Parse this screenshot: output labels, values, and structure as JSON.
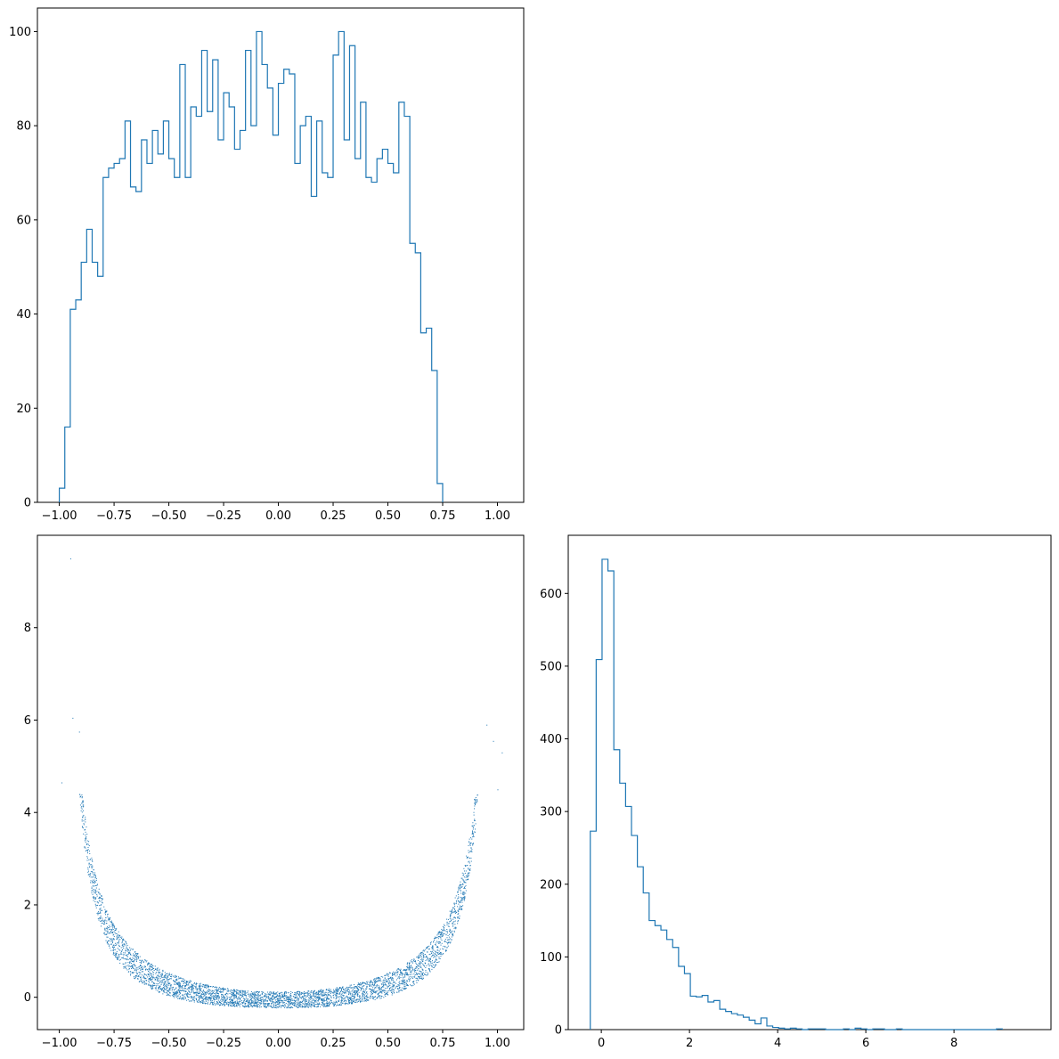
{
  "colors": {
    "series": "#1f77b4",
    "axes": "#000000",
    "background": "#ffffff"
  },
  "chart_data": [
    {
      "id": "hist-x",
      "type": "bar",
      "style": "step-histogram",
      "title": "",
      "xlabel": "",
      "ylabel": "",
      "xlim": [
        -1.1,
        1.12
      ],
      "ylim": [
        0,
        105
      ],
      "xticks": [
        -1.0,
        -0.75,
        -0.5,
        -0.25,
        0.0,
        0.25,
        0.5,
        0.75,
        1.0
      ],
      "xtick_labels": [
        "−1.00",
        "−0.75",
        "−0.50",
        "−0.25",
        "0.00",
        "0.25",
        "0.50",
        "0.75",
        "1.00"
      ],
      "yticks": [
        0,
        20,
        40,
        60,
        80,
        100
      ],
      "ytick_labels": [
        "0",
        "20",
        "40",
        "60",
        "80",
        "100"
      ],
      "bin_start": -1.0,
      "bin_width": 0.025,
      "counts": [
        3,
        16,
        41,
        43,
        51,
        58,
        51,
        48,
        69,
        71,
        72,
        73,
        81,
        67,
        66,
        77,
        72,
        79,
        74,
        81,
        73,
        69,
        93,
        69,
        84,
        82,
        96,
        83,
        94,
        77,
        87,
        84,
        75,
        79,
        96,
        80,
        100,
        93,
        88,
        78,
        89,
        92,
        91,
        72,
        80,
        82,
        65,
        81,
        70,
        69,
        95,
        100,
        77,
        97,
        73,
        85,
        69,
        68,
        73,
        75,
        72,
        70,
        85,
        82,
        55,
        53,
        36,
        37,
        28,
        4
      ]
    },
    {
      "id": "scatter-xy",
      "type": "scatter",
      "title": "",
      "xlabel": "",
      "ylabel": "",
      "xlim": [
        -1.1,
        1.12
      ],
      "ylim": [
        -0.7,
        10.0
      ],
      "xticks": [
        -1.0,
        -0.75,
        -0.5,
        -0.25,
        0.0,
        0.25,
        0.5,
        0.75,
        1.0
      ],
      "xtick_labels": [
        "−1.00",
        "−0.75",
        "−0.50",
        "−0.25",
        "0.00",
        "0.25",
        "0.50",
        "0.75",
        "1.00"
      ],
      "yticks": [
        0,
        2,
        4,
        6,
        8
      ],
      "ytick_labels": [
        "0",
        "2",
        "4",
        "6",
        "8"
      ],
      "point_count": 5000,
      "relation": "y ≈ x² / (1 − x²) band, scattered",
      "outliers": [
        [
          -0.95,
          9.5
        ],
        [
          -0.94,
          6.05
        ],
        [
          -0.91,
          5.75
        ],
        [
          -0.99,
          4.65
        ],
        [
          0.95,
          5.9
        ],
        [
          0.98,
          5.55
        ],
        [
          1.02,
          5.3
        ],
        [
          1.0,
          4.5
        ]
      ]
    },
    {
      "id": "hist-y",
      "type": "bar",
      "style": "step-histogram",
      "title": "",
      "xlabel": "",
      "ylabel": "",
      "xlim": [
        -0.75,
        10.2
      ],
      "ylim": [
        0,
        680
      ],
      "xticks": [
        0,
        2,
        4,
        6,
        8
      ],
      "xtick_labels": [
        "0",
        "2",
        "4",
        "6",
        "8"
      ],
      "yticks": [
        0,
        100,
        200,
        300,
        400,
        500,
        600
      ],
      "ytick_labels": [
        "0",
        "100",
        "200",
        "300",
        "400",
        "500",
        "600"
      ],
      "bin_start": -0.25,
      "bin_width": 0.1335,
      "counts": [
        273,
        509,
        647,
        631,
        385,
        339,
        307,
        267,
        224,
        188,
        150,
        143,
        137,
        124,
        113,
        87,
        77,
        46,
        45,
        47,
        38,
        40,
        28,
        25,
        22,
        20,
        17,
        13,
        8,
        16,
        5,
        3,
        2,
        1,
        2,
        1,
        0,
        1,
        1,
        1,
        0,
        0,
        0,
        1,
        0,
        2,
        1,
        0,
        1,
        1,
        0,
        0,
        1,
        0,
        0,
        0,
        0,
        0,
        0,
        0,
        0,
        0,
        0,
        0,
        0,
        0,
        0,
        0,
        0,
        1
      ]
    }
  ]
}
